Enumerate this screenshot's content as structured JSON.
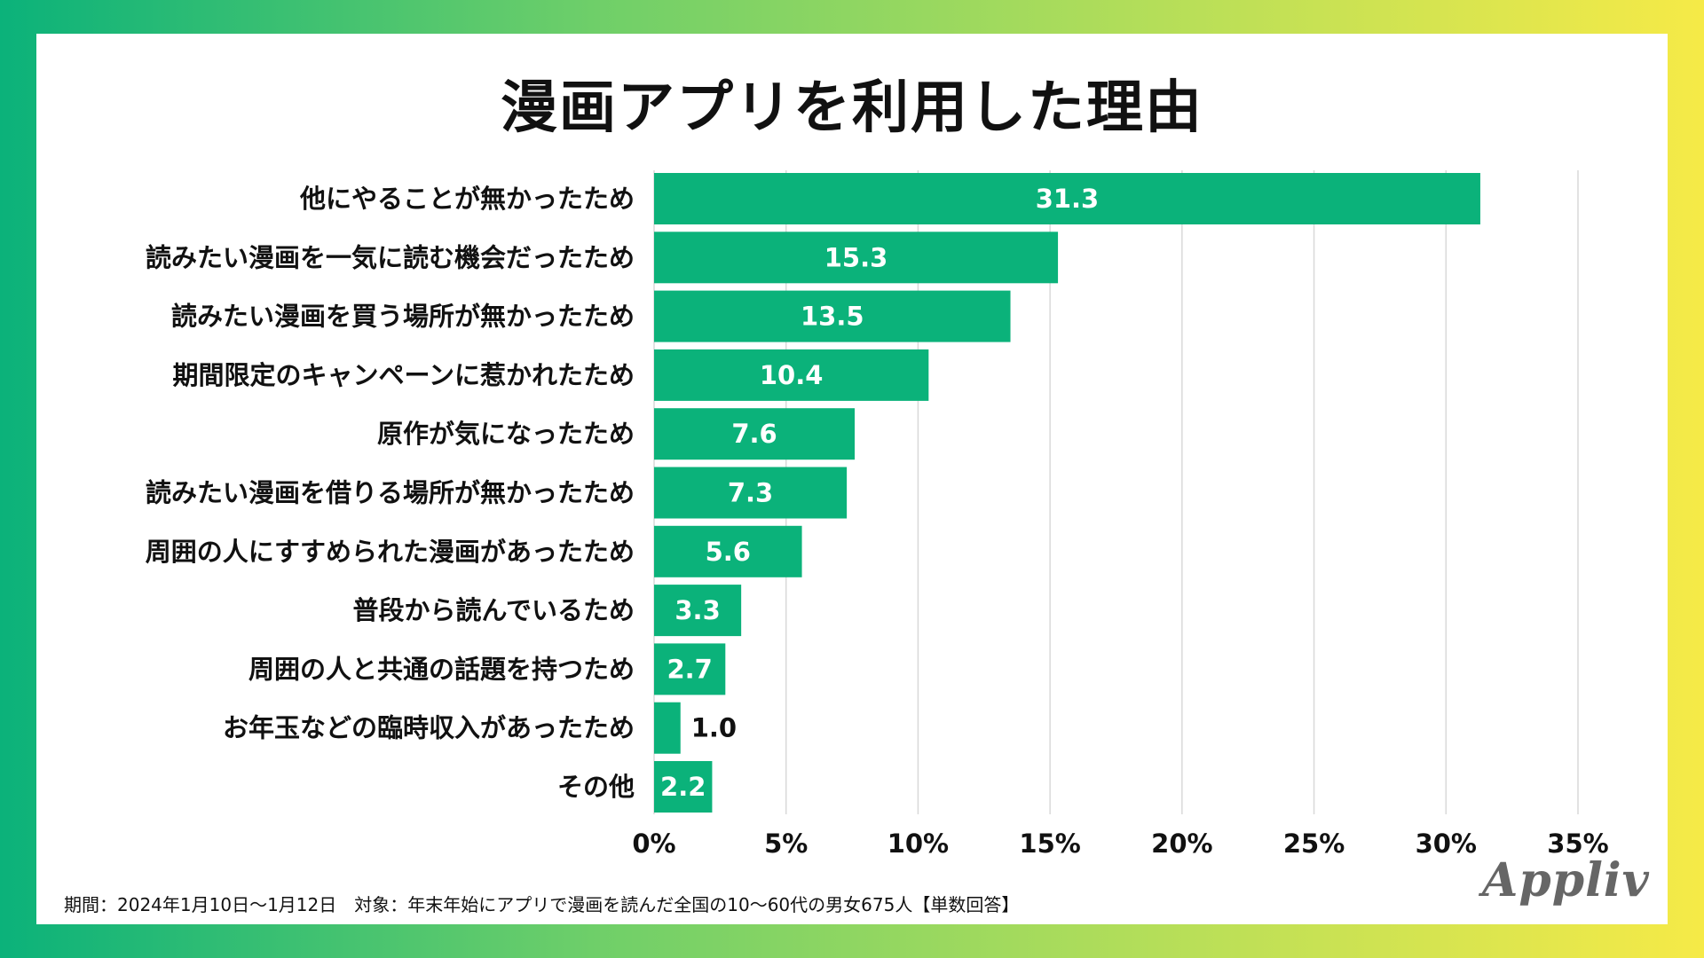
{
  "chart_data": {
    "type": "bar",
    "orientation": "horizontal",
    "title": "漫画アプリを利用した理由",
    "categories": [
      "他にやることが無かったため",
      "読みたい漫画を一気に読む機会だったため",
      "読みたい漫画を買う場所が無かったため",
      "期間限定のキャンペーンに惹かれたため",
      "原作が気になったため",
      "読みたい漫画を借りる場所が無かったため",
      "周囲の人にすすめられた漫画があったため",
      "普段から読んでいるため",
      "周囲の人と共通の話題を持つため",
      "お年玉などの臨時収入があったため",
      "その他"
    ],
    "values": [
      31.3,
      15.3,
      13.5,
      10.4,
      7.6,
      7.3,
      5.6,
      3.3,
      2.7,
      1.0,
      2.2
    ],
    "value_labels": [
      "31.3",
      "15.3",
      "13.5",
      "10.4",
      "7.6",
      "7.3",
      "5.6",
      "3.3",
      "2.7",
      "1.0",
      "2.2"
    ],
    "xlim": [
      0,
      35
    ],
    "xticks": [
      0,
      5,
      10,
      15,
      20,
      25,
      30,
      35
    ],
    "xtick_labels": [
      "0%",
      "5%",
      "10%",
      "15%",
      "20%",
      "25%",
      "30%",
      "35%"
    ],
    "grid": true,
    "bar_color": "#0bb27a",
    "label_inside_color": "#ffffff",
    "label_outside_color": "#111111"
  },
  "footnote": "期間：2024年1月10日〜1月12日　対象：年末年始にアプリで漫画を読んだ全国の10〜60代の男女675人【単数回答】",
  "logo": "Appliv",
  "colors": {
    "accent": "#0bb27a",
    "grid": "#d9d9d9",
    "text": "#111111"
  }
}
